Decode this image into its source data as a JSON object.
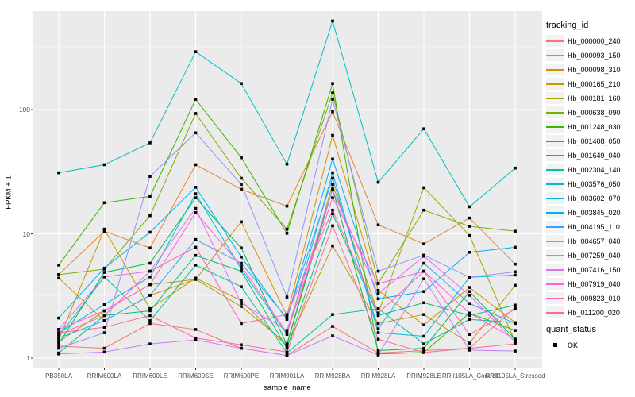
{
  "chart_data": {
    "type": "line",
    "title": "",
    "xlabel": "sample_name",
    "ylabel": "FPKM + 1",
    "y_scale": "log10",
    "ylim": [
      1,
      600
    ],
    "y_ticks": [
      1,
      10,
      100
    ],
    "y_tick_labels": [
      "1",
      "10",
      "100"
    ],
    "y_minor_breaks": [
      3.162,
      31.62,
      316.2
    ],
    "grid": "on",
    "legend_position": "right",
    "legend_title": "tracking_id",
    "quant_legend_title": "quant_status",
    "quant_items": [
      {
        "label": "OK",
        "marker": "black-square-icon"
      }
    ],
    "panel_bg": "#EBEBEB",
    "grid_color": "#FFFFFF",
    "point_color": "#000000",
    "tick_color": "#333333",
    "tick_label_color": "#4D4D4D",
    "categories": [
      "PB350LA",
      "RRIM600LA",
      "RRIM600LE",
      "RRIM600SE",
      "RRIM600PE",
      "RRIM901LA",
      "RRIM928BA",
      "RRIM928LA",
      "RRIM928LE",
      "RRII105LA_Control",
      "RRII105LA_Stressed"
    ],
    "series": [
      {
        "name": "Hb_000000_240",
        "color": "#F8766D",
        "values": [
          1.25,
          1.2,
          1.9,
          1.7,
          1.2,
          1.05,
          1.8,
          1.1,
          1.15,
          1.2,
          2.56
        ]
      },
      {
        "name": "Hb_000093_150",
        "color": "#EA8331",
        "values": [
          4.7,
          10.5,
          7.7,
          36,
          22.8,
          16.7,
          96,
          11.8,
          8.3,
          13.4,
          5.7
        ]
      },
      {
        "name": "Hb_000098_310",
        "color": "#D89000",
        "values": [
          4.4,
          2.0,
          3.2,
          4.3,
          12.5,
          2.2,
          62,
          3.5,
          1.85,
          3.7,
          1.93
        ]
      },
      {
        "name": "Hb_000165_210",
        "color": "#C09B00",
        "values": [
          1.4,
          10.9,
          2.5,
          4.4,
          2.9,
          1.25,
          8.0,
          1.9,
          2.24,
          1.32,
          3.85
        ]
      },
      {
        "name": "Hb_000181_160",
        "color": "#A3A500",
        "values": [
          1.35,
          2.4,
          3.9,
          4.3,
          2.6,
          1.3,
          25,
          2.3,
          23.5,
          9.7,
          1.35
        ]
      },
      {
        "name": "Hb_000638_090",
        "color": "#7CAE00",
        "values": [
          4.7,
          5.2,
          14,
          93,
          28,
          10.9,
          136,
          4.0,
          15.5,
          11.5,
          10.5
        ]
      },
      {
        "name": "Hb_001248_030",
        "color": "#39B600",
        "values": [
          5.6,
          17.8,
          20,
          121,
          41,
          10.1,
          162,
          1.08,
          1.11,
          2.3,
          1.67
        ]
      },
      {
        "name": "Hb_001408_050",
        "color": "#00BB4E",
        "values": [
          1.3,
          4.9,
          5.8,
          19.5,
          7.7,
          1.28,
          23,
          1.15,
          1.2,
          3.43,
          1.42
        ]
      },
      {
        "name": "Hb_001649_040",
        "color": "#00BF7D",
        "values": [
          1.1,
          2.2,
          2.4,
          6.7,
          5.0,
          1.2,
          14.5,
          2.2,
          2.79,
          2.2,
          2.67
        ]
      },
      {
        "name": "Hb_002304_140",
        "color": "#00C1A3",
        "values": [
          1.5,
          4.5,
          2.0,
          5.6,
          3.75,
          1.1,
          2.24,
          2.5,
          1.3,
          2.05,
          1.93
        ]
      },
      {
        "name": "Hb_003576_050",
        "color": "#00BFC4",
        "values": [
          31,
          36,
          54,
          292,
          162,
          36.4,
          516,
          26,
          70,
          16.5,
          33.8
        ]
      },
      {
        "name": "Hb_003602_070",
        "color": "#00BAE0",
        "values": [
          1.6,
          2.7,
          4.5,
          21,
          5.2,
          1.55,
          31,
          1.6,
          1.5,
          4.47,
          4.66
        ]
      },
      {
        "name": "Hb_003845_020",
        "color": "#00B0F6",
        "values": [
          2.1,
          5.3,
          10.3,
          23.7,
          6.5,
          2.05,
          40,
          3.0,
          3.43,
          7.1,
          7.8
        ]
      },
      {
        "name": "Hb_004195_110",
        "color": "#35A2FF",
        "values": [
          1.45,
          2.0,
          3.2,
          9.0,
          5.8,
          2.1,
          28,
          1.72,
          5.8,
          2.75,
          1.9
        ]
      },
      {
        "name": "Hb_004657_040",
        "color": "#9590FF",
        "values": [
          1.2,
          1.6,
          29,
          65,
          25,
          3.1,
          121,
          5.0,
          6.74,
          4.47,
          4.95
        ]
      },
      {
        "name": "Hb_007259_040",
        "color": "#C77CFF",
        "values": [
          1.08,
          1.12,
          1.3,
          1.4,
          1.2,
          1.05,
          1.51,
          1.06,
          4.34,
          1.16,
          1.14
        ]
      },
      {
        "name": "Hb_007416_150",
        "color": "#E76BF3",
        "values": [
          1.7,
          4.5,
          5.0,
          16,
          2.75,
          1.67,
          22.5,
          3.3,
          6.6,
          3.2,
          1.35
        ]
      },
      {
        "name": "Hb_007919_040",
        "color": "#FA62DB",
        "values": [
          1.7,
          2.4,
          3.9,
          14.8,
          5.5,
          1.6,
          19.5,
          3.97,
          5.0,
          2.3,
          1.42
        ]
      },
      {
        "name": "Hb_009823_010",
        "color": "#FF62BC",
        "values": [
          1.55,
          2.2,
          5.0,
          7.8,
          1.9,
          2.24,
          15.5,
          2.3,
          5.0,
          1.55,
          2.48
        ]
      },
      {
        "name": "Hb_011200_020",
        "color": "#FF6A98",
        "values": [
          1.6,
          1.77,
          2.2,
          1.45,
          1.28,
          1.12,
          11.6,
          1.42,
          1.11,
          1.2,
          1.3
        ]
      }
    ]
  }
}
